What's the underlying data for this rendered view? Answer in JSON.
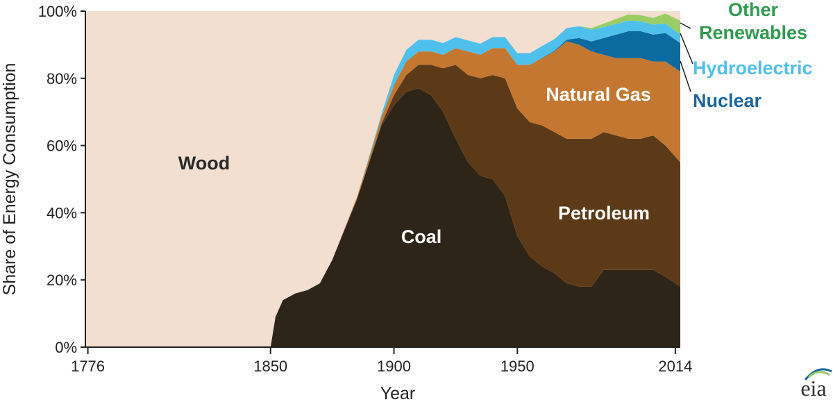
{
  "chart_data": {
    "type": "area",
    "stacked": true,
    "xlabel": "Year",
    "ylabel": "Share of Energy Consumption",
    "x_ticks": [
      1776,
      1850,
      1900,
      1950,
      2014
    ],
    "y_ticks": [
      "0%",
      "20%",
      "40%",
      "60%",
      "80%",
      "100%"
    ],
    "xlim": [
      1775,
      2016
    ],
    "ylim": [
      0,
      100
    ],
    "years": [
      1775,
      1850,
      1852,
      1855,
      1860,
      1865,
      1870,
      1875,
      1880,
      1885,
      1890,
      1895,
      1900,
      1905,
      1910,
      1915,
      1920,
      1925,
      1930,
      1935,
      1940,
      1945,
      1950,
      1955,
      1960,
      1965,
      1970,
      1975,
      1980,
      1985,
      1990,
      1995,
      2000,
      2005,
      2010,
      2016
    ],
    "series": [
      {
        "name": "Coal",
        "color": "#2d2618",
        "values": [
          0,
          0,
          9,
          14,
          16,
          17,
          19,
          26,
          35,
          44,
          55,
          66,
          72,
          76,
          77,
          75,
          70,
          62,
          55,
          51,
          50,
          45,
          33,
          27,
          24,
          22,
          19,
          18,
          18,
          23,
          23,
          23,
          23,
          23,
          21,
          18
        ]
      },
      {
        "name": "Petroleum",
        "color": "#5c3a18",
        "values": [
          0,
          0,
          0,
          0,
          0,
          0,
          0,
          0,
          0,
          0,
          0.2,
          0.5,
          3,
          5,
          7,
          9,
          13,
          22,
          26,
          29,
          31,
          35,
          38,
          40,
          42,
          42,
          43,
          44,
          44,
          41,
          40,
          39,
          39,
          40,
          39,
          37
        ]
      },
      {
        "name": "Natural Gas",
        "color": "#c47730",
        "values": [
          0,
          0,
          0,
          0,
          0,
          0,
          0,
          0,
          0.3,
          0.7,
          1.2,
          2,
          3,
          4,
          4,
          4,
          4,
          5,
          7,
          7,
          8,
          9,
          13,
          17,
          20,
          24,
          29,
          28,
          26,
          23,
          23,
          24,
          24,
          22,
          25,
          27
        ]
      },
      {
        "name": "Nuclear",
        "color": "#0b6aa0",
        "values": [
          0,
          0,
          0,
          0,
          0,
          0,
          0,
          0,
          0,
          0,
          0,
          0,
          0,
          0,
          0,
          0,
          0,
          0,
          0,
          0,
          0,
          0,
          0,
          0,
          0.1,
          0.2,
          0.5,
          2,
          3,
          5,
          7,
          8,
          8,
          8,
          8.5,
          8.5
        ]
      },
      {
        "name": "Hydroelectric",
        "color": "#4fc0ec",
        "values": [
          0,
          0,
          0,
          0,
          0,
          0,
          0,
          0,
          0,
          0,
          0.5,
          1,
          3,
          3.5,
          3.5,
          3.5,
          3.5,
          3.3,
          3.3,
          3.3,
          3.3,
          3.3,
          3.5,
          3.5,
          3.5,
          3.5,
          3.5,
          3.5,
          3.5,
          3.3,
          3.2,
          3.2,
          3,
          3,
          2.8,
          2.5
        ]
      },
      {
        "name": "Other Renewables",
        "color": "#9ccc65",
        "values": [
          0,
          0,
          0,
          0,
          0,
          0,
          0,
          0,
          0,
          0,
          0,
          0,
          0,
          0,
          0,
          0,
          0,
          0,
          0,
          0,
          0,
          0,
          0,
          0,
          0,
          0,
          0,
          0,
          0.5,
          1,
          1.5,
          1.8,
          1.8,
          2,
          3,
          4.2
        ]
      },
      {
        "name": "Wood",
        "color": "#f2dfcf",
        "values": [
          100,
          100,
          91,
          86,
          84,
          83,
          81,
          74,
          64.7,
          55.3,
          43.1,
          30.5,
          19,
          11.5,
          8.5,
          8.5,
          9.5,
          7.7,
          8.7,
          9.7,
          7.7,
          7.7,
          12.5,
          12.5,
          10.4,
          8.3,
          5,
          4.5,
          5,
          3.7,
          2.3,
          1.0,
          1.2,
          2,
          0.7,
          2.8
        ]
      }
    ],
    "area_labels": {
      "wood": "Wood",
      "coal": "Coal",
      "petroleum": "Petroleum",
      "natural_gas": "Natural Gas"
    },
    "legend": [
      {
        "label": "Other Renewables",
        "line1": "Other",
        "line2": "Renewables",
        "color": "#2e9b4e"
      },
      {
        "label": "Hydroelectric",
        "color": "#4fc0ec"
      },
      {
        "label": "Nuclear",
        "color": "#1a64a0"
      }
    ]
  },
  "logo": {
    "text": "eia"
  }
}
